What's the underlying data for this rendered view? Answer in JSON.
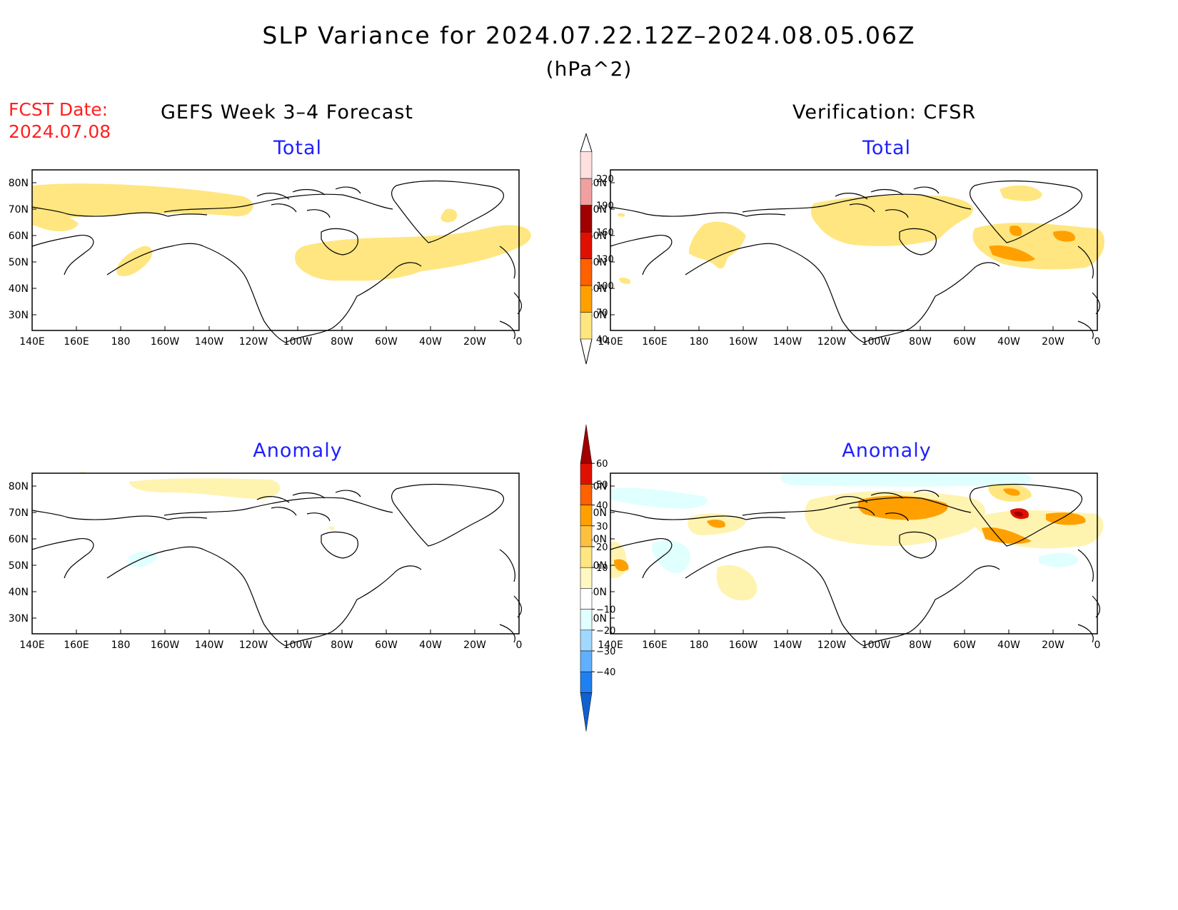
{
  "header": {
    "title": "SLP Variance for 2024.07.22.12Z–2024.08.05.06Z",
    "units": "(hPa^2)",
    "fcst_date_label": "FCST Date:",
    "fcst_date_value": "2024.07.08",
    "left_column_title": "GEFS Week 3–4 Forecast",
    "right_column_title": "Verification: CFSR"
  },
  "panels": {
    "fcst_total": {
      "title": "Total"
    },
    "obs_total": {
      "title": "Total"
    },
    "fcst_anom": {
      "title": "Anomaly"
    },
    "obs_anom": {
      "title": "Anomaly"
    }
  },
  "axes": {
    "x_ticks": [
      "140E",
      "160E",
      "180",
      "160W",
      "140W",
      "120W",
      "100W",
      "80W",
      "60W",
      "40W",
      "20W",
      "0"
    ],
    "y_ticks": [
      "80N",
      "70N",
      "60N",
      "50N",
      "40N",
      "30N"
    ]
  },
  "colorbars": {
    "total": {
      "labels": [
        "40",
        "70",
        "100",
        "130",
        "160",
        "190",
        "220"
      ],
      "colors": [
        "#ffe680",
        "#ffa000",
        "#ff6000",
        "#e01000",
        "#a00000",
        "#f0a0a0",
        "#ffe0e0"
      ]
    },
    "anomaly": {
      "labels": [
        "60",
        "50",
        "40",
        "30",
        "20",
        "10",
        "−10",
        "−20",
        "−30",
        "−40"
      ],
      "colors": [
        "#a00000",
        "#e01000",
        "#ff6000",
        "#ffa000",
        "#ffc040",
        "#ffe680",
        "#fff8c0",
        "#ffffff",
        "#e0ffff",
        "#a0d8ff",
        "#60b0ff",
        "#2080f0",
        "#1060d0"
      ]
    }
  },
  "colors": {
    "light_yellow": "#fff3b0",
    "yellow": "#ffe680",
    "orange": "#ffa000",
    "deep_orange": "#ff6000",
    "red": "#e01000",
    "dark_red": "#a00000",
    "light_cyan": "#e0ffff",
    "title_red": "#ff2020",
    "title_blue": "#2020ff"
  }
}
